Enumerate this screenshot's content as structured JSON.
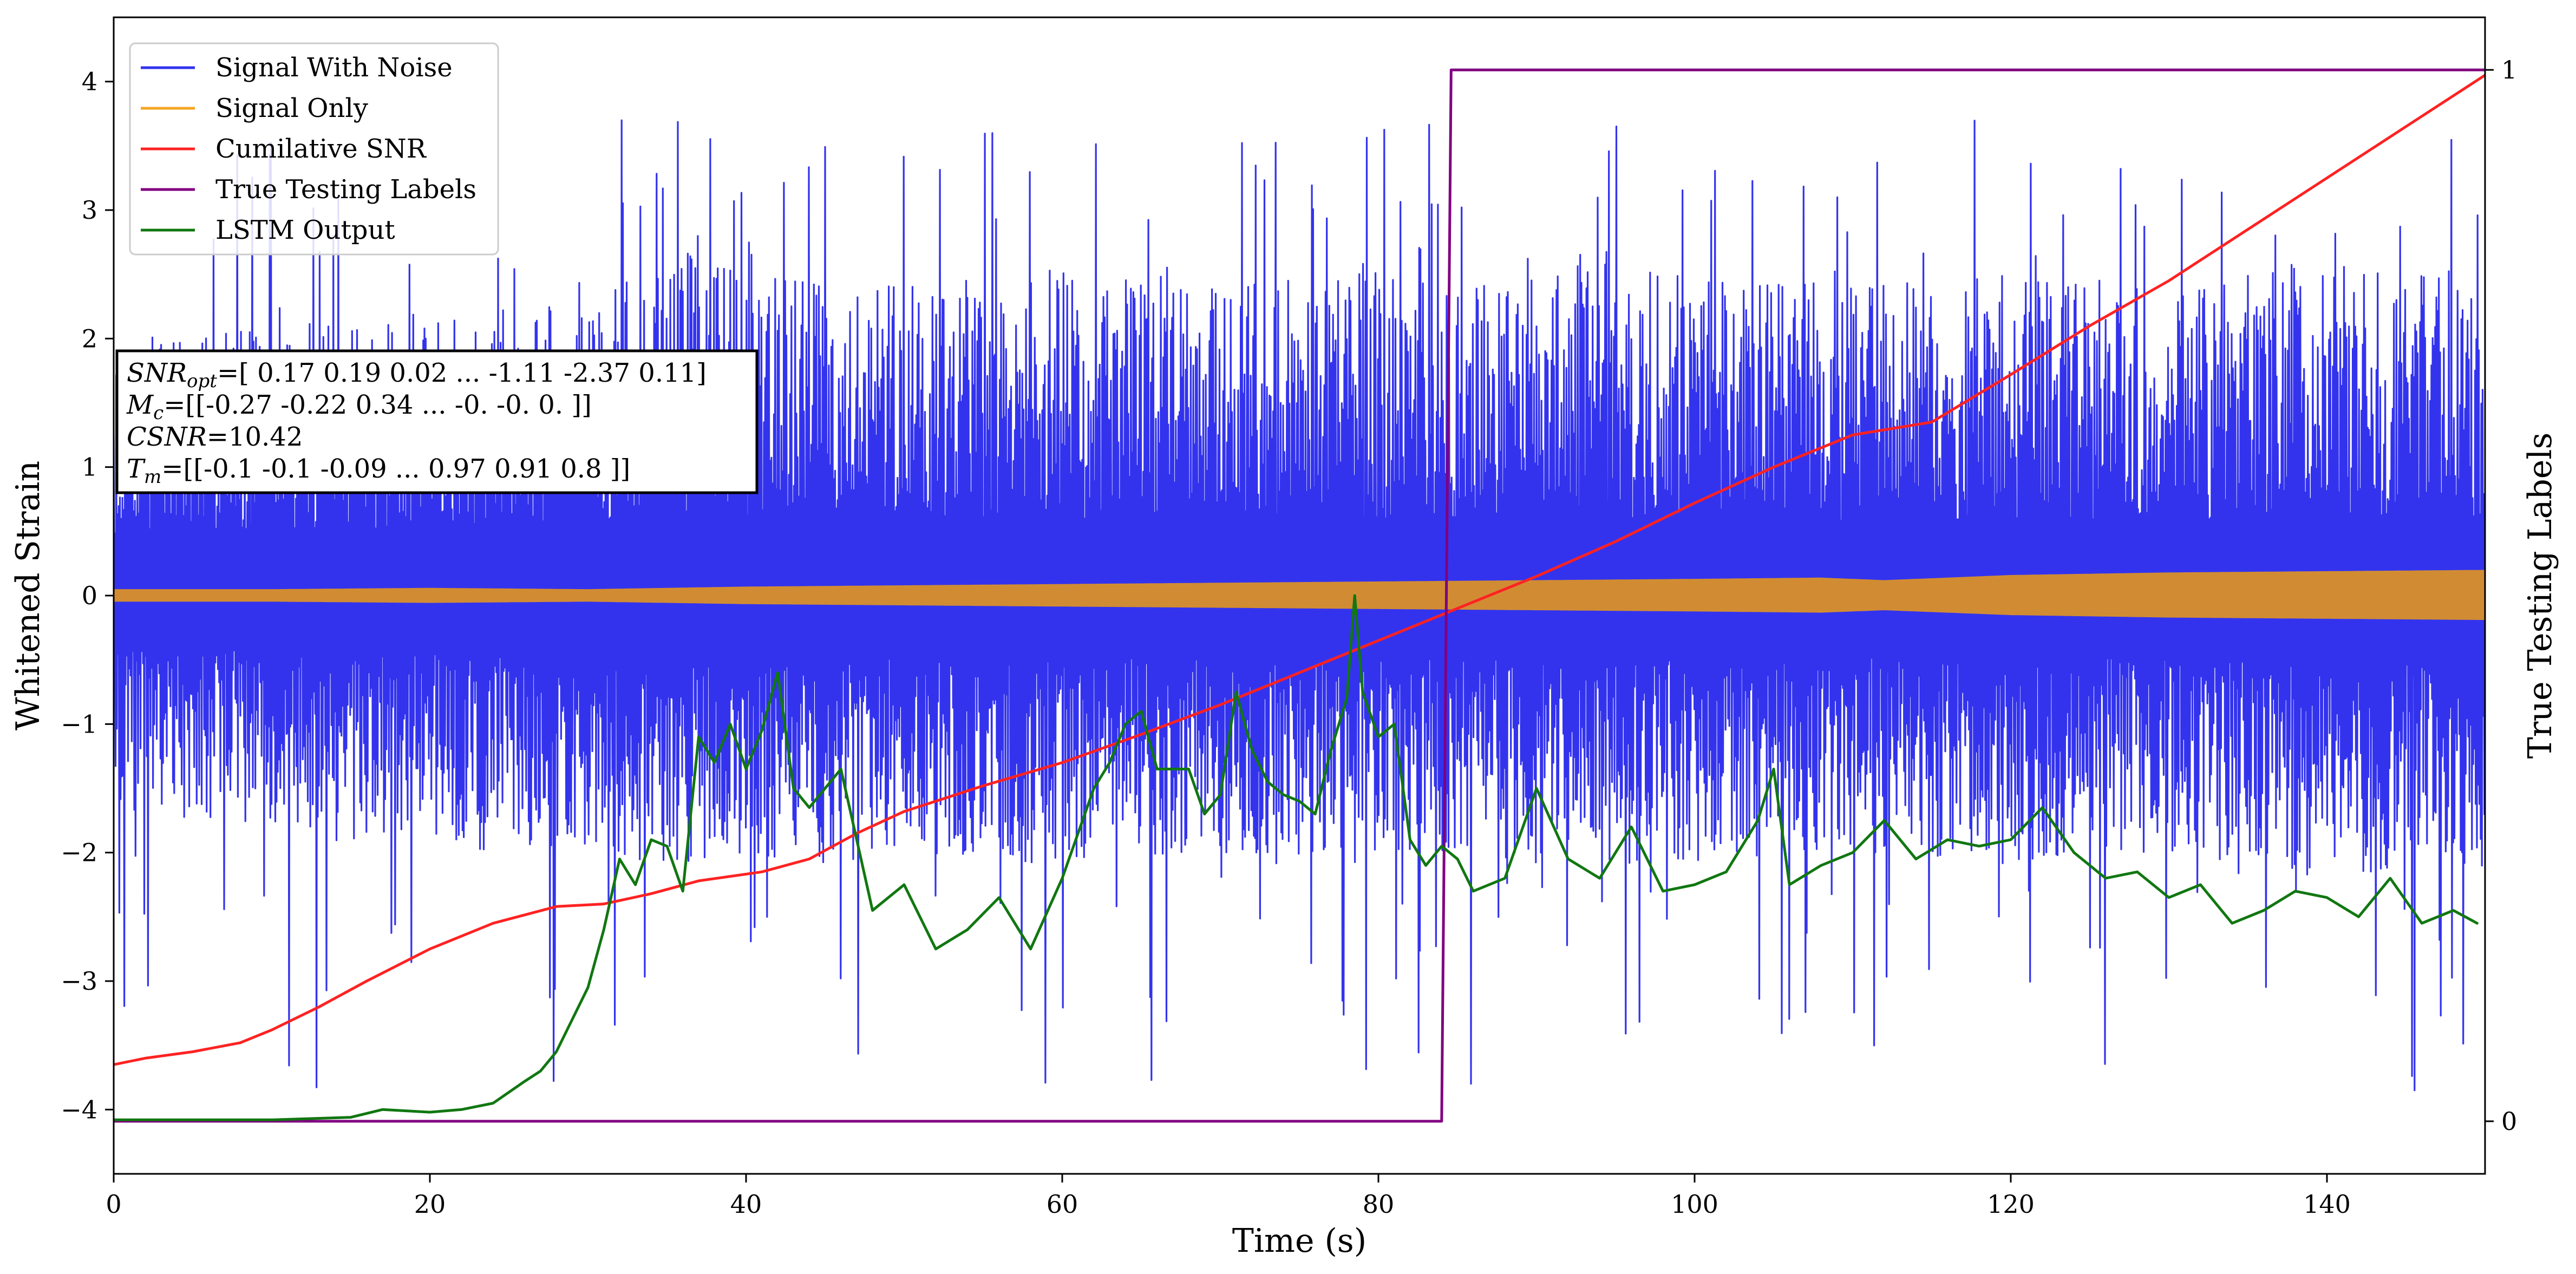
{
  "chart_data": {
    "type": "line",
    "xlabel": "Time (s)",
    "ylabel": "Whitened Strain",
    "y2label": "True Testing Labels",
    "xlim": [
      0,
      150
    ],
    "ylim": [
      -4.5,
      4.5
    ],
    "y2lim": [
      -0.05,
      1.05
    ],
    "x_ticks": [
      0,
      20,
      40,
      60,
      80,
      100,
      120,
      140
    ],
    "y_ticks": [
      -4,
      -3,
      -2,
      -1,
      0,
      1,
      2,
      3,
      4
    ],
    "y2_ticks": [
      0,
      1
    ],
    "grid": false,
    "legend_position": "top-left",
    "series": [
      {
        "name": "Signal With Noise",
        "color": "#3333ee",
        "axis": "left",
        "envelope": {
          "x": [
            0,
            10,
            20,
            30,
            35,
            40,
            45,
            50,
            60,
            70,
            80,
            85,
            90,
            100,
            110,
            120,
            130,
            140,
            150
          ],
          "band_upper": [
            1.9,
            2.0,
            2.1,
            2.2,
            2.6,
            2.4,
            2.4,
            2.3,
            2.4,
            2.3,
            2.4,
            2.3,
            2.4,
            2.4,
            2.3,
            2.4,
            2.3,
            2.5,
            2.4
          ],
          "band_lower": [
            -1.6,
            -1.7,
            -1.8,
            -1.9,
            -2.0,
            -1.9,
            -2.0,
            -1.9,
            -2.0,
            -1.9,
            -2.0,
            -1.9,
            -2.0,
            -2.0,
            -1.9,
            -2.0,
            -1.9,
            -2.1,
            -2.0
          ],
          "peak_max": 3.7,
          "peak_min": -4.2
        }
      },
      {
        "name": "Signal Only",
        "color": "#f5a623",
        "fill_color": "#d18c33",
        "axis": "left",
        "amplitude": {
          "x": [
            0,
            10,
            20,
            30,
            40,
            50,
            60,
            70,
            80,
            90,
            100,
            108,
            112,
            120,
            130,
            140,
            150
          ],
          "values": [
            0.05,
            0.05,
            0.06,
            0.05,
            0.07,
            0.08,
            0.09,
            0.1,
            0.11,
            0.12,
            0.13,
            0.14,
            0.12,
            0.16,
            0.18,
            0.19,
            0.2
          ]
        }
      },
      {
        "name": "Cumilative SNR",
        "color": "#ff2222",
        "axis": "left",
        "x": [
          0,
          2,
          5,
          8,
          10,
          13,
          16,
          20,
          24,
          28,
          31,
          34,
          37,
          41,
          44,
          47,
          50,
          55,
          60,
          65,
          70,
          75,
          80,
          85,
          90,
          95,
          100,
          105,
          110,
          115,
          120,
          125,
          130,
          135,
          140,
          145,
          150
        ],
        "y": [
          -3.65,
          -3.6,
          -3.55,
          -3.48,
          -3.38,
          -3.2,
          -3.0,
          -2.75,
          -2.55,
          -2.42,
          -2.4,
          -2.32,
          -2.22,
          -2.15,
          -2.05,
          -1.85,
          -1.68,
          -1.48,
          -1.3,
          -1.08,
          -0.85,
          -0.6,
          -0.35,
          -0.1,
          0.15,
          0.42,
          0.72,
          1.0,
          1.25,
          1.35,
          1.72,
          2.1,
          2.45,
          2.85,
          3.25,
          3.65,
          4.05
        ]
      },
      {
        "name": "True Testing Labels",
        "color": "#800080",
        "axis": "right",
        "x": [
          0,
          84,
          84.6,
          150
        ],
        "y": [
          0,
          0,
          1,
          1
        ]
      },
      {
        "name": "LSTM Output",
        "color": "#117711",
        "axis": "left",
        "x": [
          0,
          10,
          15,
          17,
          20,
          22,
          24,
          26,
          27,
          28,
          29,
          30,
          31,
          32,
          33,
          34,
          35,
          36,
          37,
          38,
          39,
          40,
          41,
          42,
          43,
          44,
          46,
          47,
          48,
          50,
          52,
          54,
          56,
          57,
          58,
          60,
          62,
          63,
          64,
          65,
          66,
          68,
          69,
          70,
          71,
          72,
          73,
          74,
          75,
          76,
          77,
          78,
          78.5,
          79,
          80,
          81,
          82,
          83,
          84,
          85,
          86,
          88,
          90,
          92,
          94,
          96,
          98,
          100,
          102,
          104,
          105,
          106,
          108,
          110,
          112,
          114,
          116,
          118,
          120,
          122,
          124,
          126,
          128,
          130,
          132,
          134,
          136,
          138,
          140,
          142,
          144,
          146,
          148,
          149.5
        ],
        "y": [
          -4.08,
          -4.08,
          -4.06,
          -4.0,
          -4.02,
          -4.0,
          -3.95,
          -3.78,
          -3.7,
          -3.55,
          -3.3,
          -3.05,
          -2.6,
          -2.05,
          -2.25,
          -1.9,
          -1.95,
          -2.3,
          -1.1,
          -1.3,
          -1.0,
          -1.35,
          -1.05,
          -0.6,
          -1.5,
          -1.65,
          -1.35,
          -1.9,
          -2.45,
          -2.25,
          -2.75,
          -2.6,
          -2.35,
          -2.55,
          -2.75,
          -2.2,
          -1.5,
          -1.3,
          -1.0,
          -0.9,
          -1.35,
          -1.35,
          -1.7,
          -1.55,
          -0.75,
          -1.2,
          -1.45,
          -1.55,
          -1.6,
          -1.7,
          -1.2,
          -0.8,
          0.0,
          -0.75,
          -1.1,
          -1.0,
          -1.9,
          -2.1,
          -1.95,
          -2.05,
          -2.3,
          -2.2,
          -1.5,
          -2.05,
          -2.2,
          -1.8,
          -2.3,
          -2.25,
          -2.15,
          -1.75,
          -1.35,
          -2.25,
          -2.1,
          -2.0,
          -1.75,
          -2.05,
          -1.9,
          -1.95,
          -1.9,
          -1.65,
          -2.0,
          -2.2,
          -2.15,
          -2.35,
          -2.25,
          -2.55,
          -2.45,
          -2.3,
          -2.35,
          -2.5,
          -2.2,
          -2.55,
          -2.45,
          -2.55
        ]
      }
    ],
    "annotation": {
      "lines": [
        [
          {
            "t": "SNR",
            "i": true
          },
          {
            "t": "opt",
            "i": true,
            "sub": true
          },
          {
            "t": "=[ 0.17  0.19  0.02 ... -1.11 -2.37  0.11]"
          }
        ],
        [
          {
            "t": "M",
            "i": true
          },
          {
            "t": "c",
            "i": true,
            "sub": true
          },
          {
            "t": "=[[-0.27 -0.22  0.34 ... -0.   -0.    0.  ]]"
          }
        ],
        [
          {
            "t": "CSNR",
            "i": true
          },
          {
            "t": "=10.42"
          }
        ],
        [
          {
            "t": "T",
            "i": true
          },
          {
            "t": "m",
            "i": true,
            "sub": true
          },
          {
            "t": "=[[-0.1  -0.1  -0.09 ...  0.97  0.91  0.8 ]]"
          }
        ]
      ]
    }
  }
}
